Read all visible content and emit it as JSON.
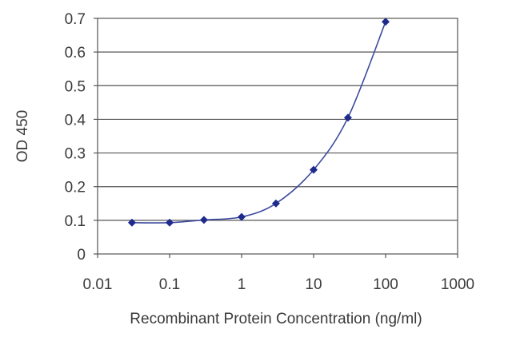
{
  "chart_data": {
    "type": "line",
    "title": "",
    "xlabel": "Recombinant Protein Concentration (ng/ml)",
    "ylabel": "OD 450",
    "x_scale": "log",
    "xlim": [
      0.01,
      1000
    ],
    "ylim": [
      0,
      0.7
    ],
    "x_ticks": [
      "0.01",
      "0.1",
      "1",
      "10",
      "100",
      "1000"
    ],
    "y_ticks": [
      "0",
      "0.1",
      "0.2",
      "0.3",
      "0.4",
      "0.5",
      "0.6",
      "0.7"
    ],
    "grid": "horizontal",
    "legend": "none",
    "series": [
      {
        "x": [
          0.03,
          0.1,
          0.3,
          1,
          3,
          10,
          30,
          100
        ],
        "y": [
          0.093,
          0.093,
          0.101,
          0.11,
          0.15,
          0.25,
          0.405,
          0.69
        ]
      }
    ],
    "colors": {
      "line": "#3d4a9e",
      "marker": "#1e2a8c",
      "grid": "#555555",
      "axis": "#555555"
    }
  }
}
